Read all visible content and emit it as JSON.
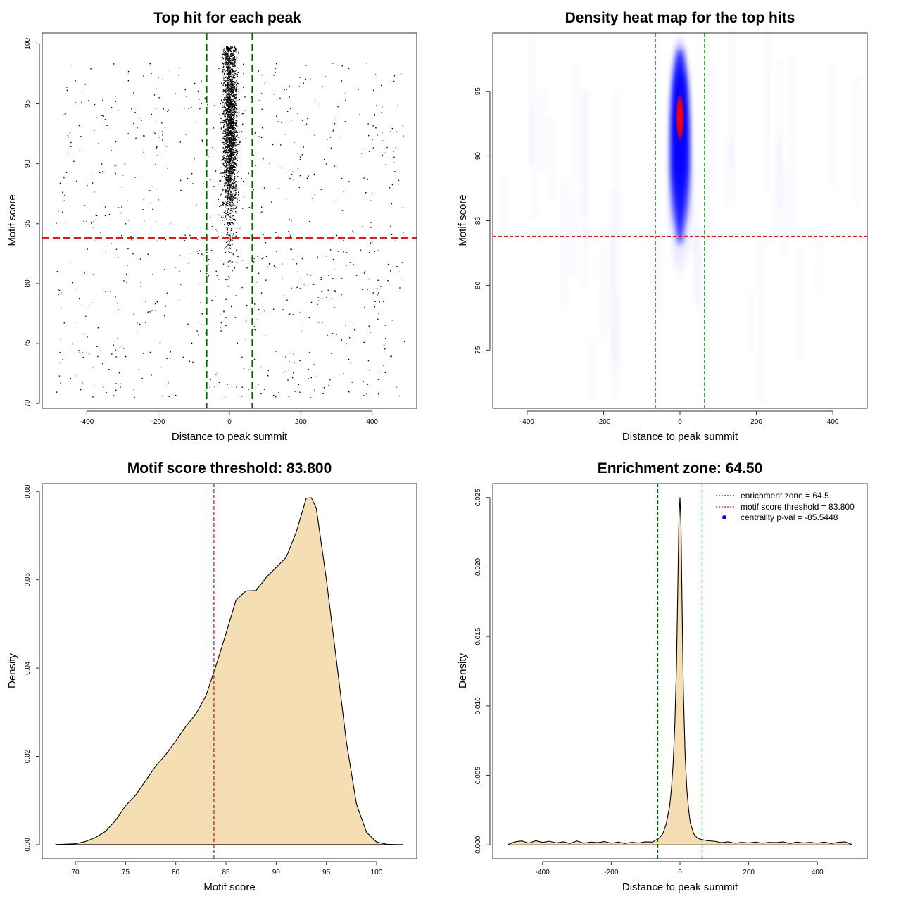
{
  "chart_data": [
    {
      "id": "p1",
      "type": "scatter",
      "title": "Top hit for each peak",
      "xlabel": "Distance to peak summit",
      "ylabel": "Motif score",
      "xlim": [
        -525,
        525
      ],
      "ylim": [
        69.6,
        100.9
      ],
      "xticks": [
        -400,
        -200,
        0,
        200,
        400
      ],
      "yticks": [
        70,
        75,
        80,
        85,
        90,
        95,
        100
      ],
      "vlines": [
        -64.5,
        64.5
      ],
      "hline": 83.8,
      "vline_color": "#006400",
      "hline_color": "#e31a1c",
      "point_color": "#000000",
      "points_summary": {
        "central_cluster": {
          "x_center": 0,
          "x_spread": 18,
          "y_range": [
            76,
            99.8
          ],
          "y_mode": 93,
          "approx_count": 2200
        },
        "background": {
          "x_range": [
            -490,
            490
          ],
          "y_range": [
            70.5,
            98.5
          ],
          "approx_count": 800
        }
      }
    },
    {
      "id": "p2",
      "type": "heatmap",
      "title": "Density heat map for the top hits",
      "xlabel": "Distance to peak summit",
      "ylabel": "Motif score",
      "xlim": [
        -490,
        490
      ],
      "ylim": [
        70.5,
        99.5
      ],
      "xticks": [
        -400,
        -200,
        0,
        200,
        400
      ],
      "yticks": [
        75,
        80,
        85,
        90,
        95
      ],
      "vlines": [
        -64.5,
        64.5
      ],
      "hline": 83.8,
      "vline_color": "#006400",
      "hline_color": "#e31a1c",
      "colors": [
        "#ffffff",
        "#0000ff",
        "#ff0000"
      ],
      "density_peak": {
        "x": 0,
        "y": 93,
        "y_span": [
          80,
          99.5
        ]
      }
    },
    {
      "id": "p3",
      "type": "area",
      "title": "Motif score threshold: 83.800",
      "xlabel": "Motif score",
      "ylabel": "Density",
      "xlim": [
        66.7,
        104
      ],
      "ylim": [
        -0.0032,
        0.0818
      ],
      "xticks": [
        70,
        75,
        80,
        85,
        90,
        95,
        100
      ],
      "yticks": [
        0.0,
        0.02,
        0.04,
        0.06,
        0.08
      ],
      "ytick_labels": [
        "0.00",
        "0.02",
        "0.04",
        "0.06",
        "0.08"
      ],
      "vline": 83.8,
      "vline_color": "#e31a1c",
      "fill": "#f5deb3",
      "x": [
        68,
        70,
        71,
        72,
        73,
        74,
        75,
        76,
        77,
        78,
        79,
        80,
        81,
        82,
        83,
        84,
        85,
        86,
        87,
        88,
        89,
        90,
        91,
        92,
        93,
        93.5,
        94,
        95,
        96,
        97,
        98,
        99,
        100,
        101,
        102,
        102.6
      ],
      "y": [
        0,
        0.0002,
        0.0007,
        0.0016,
        0.003,
        0.0055,
        0.0088,
        0.0112,
        0.0145,
        0.0178,
        0.0204,
        0.0235,
        0.0268,
        0.0296,
        0.0337,
        0.0405,
        0.0478,
        0.0554,
        0.0575,
        0.0576,
        0.0605,
        0.0628,
        0.0651,
        0.0708,
        0.0785,
        0.0786,
        0.0762,
        0.0601,
        0.0418,
        0.0232,
        0.0092,
        0.0028,
        0.0006,
        0.0001,
        0,
        0
      ]
    },
    {
      "id": "p4",
      "type": "area",
      "title": "Enrichment zone: 64.50",
      "xlabel": "Distance to peak summit",
      "ylabel": "Density",
      "xlim": [
        -545,
        545
      ],
      "ylim": [
        -0.001,
        0.026
      ],
      "xticks": [
        -400,
        -200,
        0,
        200,
        400
      ],
      "yticks": [
        0.0,
        0.005,
        0.01,
        0.015,
        0.02,
        0.025
      ],
      "ytick_labels": [
        "0.000",
        "0.005",
        "0.010",
        "0.015",
        "0.020",
        "0.025"
      ],
      "vlines": [
        -64.5,
        64.5
      ],
      "vline_color": "#006400",
      "fill": "#f5deb3",
      "x": [
        -500,
        -480,
        -460,
        -440,
        -420,
        -400,
        -380,
        -360,
        -340,
        -320,
        -300,
        -280,
        -260,
        -240,
        -220,
        -200,
        -180,
        -160,
        -140,
        -120,
        -100,
        -80,
        -60,
        -50,
        -40,
        -30,
        -25,
        -20,
        -15,
        -10,
        -6,
        -3,
        0,
        3,
        6,
        10,
        15,
        20,
        25,
        30,
        40,
        50,
        60,
        80,
        100,
        120,
        140,
        160,
        180,
        200,
        220,
        240,
        260,
        280,
        300,
        320,
        340,
        360,
        380,
        400,
        420,
        440,
        460,
        480,
        500
      ],
      "y": [
        3e-05,
        0.00022,
        0.00028,
        0.00012,
        0.0003,
        0.00018,
        0.00026,
        0.00014,
        0.00022,
        0.0001,
        0.00028,
        0.00012,
        0.0002,
        0.00016,
        0.00024,
        0.00012,
        0.0002,
        0.0001,
        0.00018,
        0.00014,
        0.00022,
        0.0002,
        0.0005,
        0.0008,
        0.0015,
        0.0028,
        0.004,
        0.0058,
        0.0086,
        0.013,
        0.019,
        0.0235,
        0.025,
        0.023,
        0.0175,
        0.011,
        0.0065,
        0.004,
        0.0026,
        0.0016,
        0.0008,
        0.0005,
        0.0004,
        0.0003,
        0.00026,
        0.00016,
        0.00022,
        0.00012,
        0.00018,
        0.00014,
        0.0002,
        0.00012,
        0.00018,
        0.00016,
        0.00022,
        0.0001,
        0.0002,
        0.00014,
        0.00018,
        0.00012,
        0.0002,
        0.0001,
        0.00018,
        0.00022,
        3e-05
      ]
    }
  ],
  "legend": {
    "items": [
      {
        "label": "enrichment zone = 64.5",
        "color": "#006400",
        "kind": "dotted-line"
      },
      {
        "label": "motif score threshold = 83.800",
        "color": "#e31a1c",
        "kind": "dotted-line"
      },
      {
        "label": "centrality p-val = -85.5448",
        "color": "#0000ff",
        "kind": "point"
      }
    ]
  }
}
